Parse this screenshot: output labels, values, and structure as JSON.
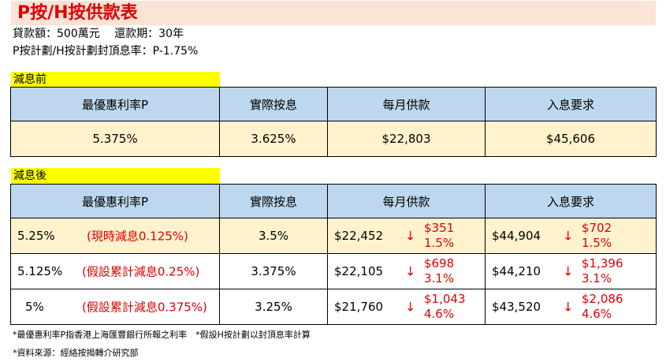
{
  "title": "P按/H按供款表",
  "info_line1": "貸款額：500萬元　 還款期：30年",
  "info_line2": "P按計劃/H按計劃封頂息率：P-1.75%",
  "before": {
    "label": "減息前",
    "headers": [
      "最優惠利率P",
      "實際按息",
      "每月供款",
      "入息要求"
    ],
    "row": [
      "5.375%",
      "3.625%",
      "$22,803",
      "$45,606"
    ]
  },
  "after": {
    "label": "減息後",
    "headers": [
      "最優惠利率P",
      "實際按息",
      "每月供款",
      "入息要求"
    ],
    "rows": [
      {
        "p": "5.25%",
        "note": "(現時減息0.125%)",
        "rate": "3.5%",
        "pay": "$22,452",
        "pay_arrow": "↓",
        "pay_chg": "$351",
        "pay_pct": "1.5%",
        "inc": "$44,904",
        "inc_arrow": "↓",
        "inc_chg": "$702",
        "inc_pct": "1.5%"
      },
      {
        "p": "5.125%",
        "note": "(假設累計減息0.25%)",
        "rate": "3.375%",
        "pay": "$22,105",
        "pay_arrow": "↓",
        "pay_chg": "$698",
        "pay_pct": "3.1%",
        "inc": "$44,210",
        "inc_arrow": "↓",
        "inc_chg": "$1,396",
        "inc_pct": "3.1%"
      },
      {
        "p": "5%",
        "note": "(假設累計減息0.375%)",
        "rate": "3.25%",
        "pay": "$21,760",
        "pay_arrow": "↓",
        "pay_chg": "$1,043",
        "pay_pct": "4.6%",
        "inc": "$43,520",
        "inc_arrow": "↓",
        "inc_chg": "$2,086",
        "inc_pct": "4.6%"
      }
    ]
  },
  "footnote1": "*最優惠利率P指香港上海匯豐銀行所報之利率　*假設H按計劃以封頂息率計算",
  "footnote2": "*資料來源：經絡按揭轉介研究部",
  "colors": {
    "title_bg": "#fbe3d6",
    "title_text": "#e00000",
    "header_bg": "#bdd7ee",
    "highlight_row": "#fff2cc",
    "label_bg": "#ffff00"
  }
}
